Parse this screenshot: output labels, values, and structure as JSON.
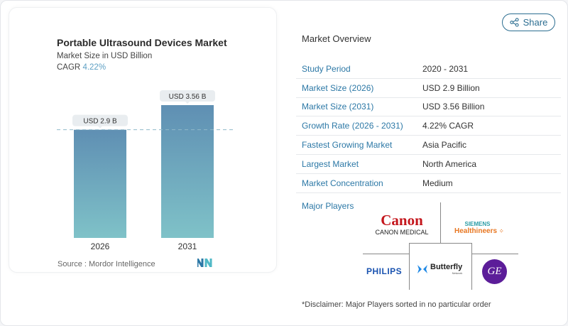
{
  "chart_data": {
    "type": "bar",
    "title": "Portable Ultrasound Devices Market",
    "subtitle": "Market Size in USD Billion",
    "cagr_label": "CAGR",
    "cagr_value": "4.22%",
    "categories": [
      "2026",
      "2031"
    ],
    "values": [
      2.9,
      3.56
    ],
    "data_labels": [
      "USD 2.9 B",
      "USD 3.56 B"
    ],
    "reference_line": 2.9,
    "colors": {
      "bar_top": "#5f8fb3",
      "bar_bottom": "#7fc2c8",
      "label_bg": "#e9edf0",
      "ref_line": "#8fb9c9"
    },
    "source": "Source :  Mordor Intelligence"
  },
  "share": {
    "label": "Share",
    "icon": "share-icon"
  },
  "overview": {
    "title": "Market Overview",
    "rows": [
      {
        "label": "Study Period",
        "value": "2020 - 2031"
      },
      {
        "label": "Market Size (2026)",
        "value": "USD 2.9 Billion"
      },
      {
        "label": "Market Size (2031)",
        "value": "USD 3.56 Billion"
      },
      {
        "label": "Growth Rate (2026 - 2031)",
        "value": "4.22% CAGR"
      },
      {
        "label": "Fastest Growing Market",
        "value": "Asia Pacific"
      },
      {
        "label": "Largest Market",
        "value": "North America"
      },
      {
        "label": "Market Concentration",
        "value": "Medium"
      }
    ]
  },
  "players": {
    "title": "Major Players",
    "logos": [
      "Canon",
      "CANON MEDICAL",
      "SIEMENS",
      "Healthineers",
      "PHILIPS",
      "Butterfly",
      "Network",
      "GE"
    ],
    "disclaimer": "*Disclaimer: Major Players sorted in no particular order"
  }
}
